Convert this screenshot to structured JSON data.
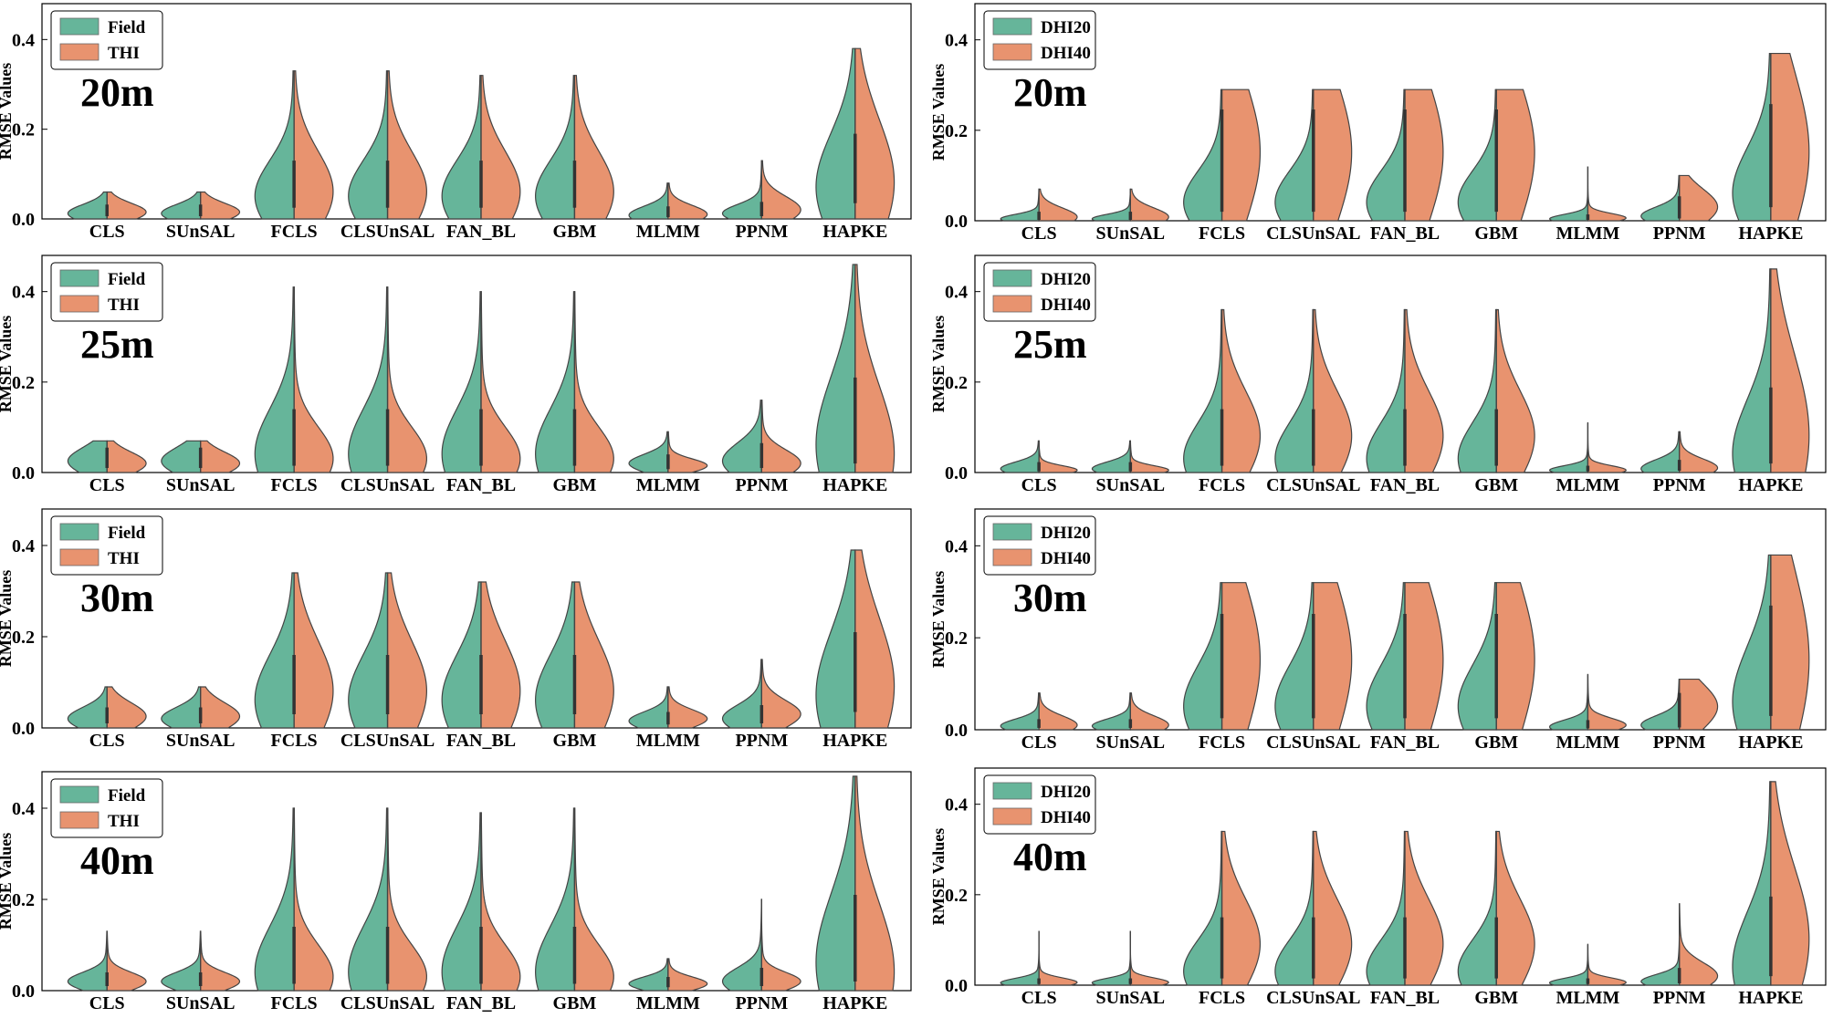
{
  "figure": {
    "ylabel": "RMSE Values",
    "colors": {
      "left": "#66b59a",
      "right": "#e8936f"
    }
  },
  "chart_data": [
    {
      "type": "violin",
      "panel": "left-20m",
      "resolution": "20m",
      "legend": [
        "Field",
        "THI"
      ],
      "ylabel": "RMSE Values",
      "yticks": [
        "0.0",
        "0.2",
        "0.4"
      ],
      "ylim": [
        0,
        0.48
      ],
      "categories": [
        "CLS",
        "SUnSAL",
        "FCLS",
        "CLSUnSAL",
        "FAN_BL",
        "GBM",
        "MLMM",
        "PPNM",
        "HAPKE"
      ],
      "series": [
        {
          "name": "Field",
          "max": [
            0.06,
            0.06,
            0.33,
            0.33,
            0.32,
            0.32,
            0.08,
            0.13,
            0.38
          ],
          "center": [
            0.012,
            0.012,
            0.05,
            0.05,
            0.05,
            0.05,
            0.008,
            0.012,
            0.07
          ],
          "spread": [
            0.02,
            0.02,
            0.08,
            0.08,
            0.08,
            0.08,
            0.02,
            0.02,
            0.12
          ]
        },
        {
          "name": "THI",
          "max": [
            0.06,
            0.06,
            0.33,
            0.33,
            0.32,
            0.32,
            0.08,
            0.13,
            0.38
          ],
          "center": [
            0.015,
            0.015,
            0.06,
            0.06,
            0.06,
            0.06,
            0.01,
            0.02,
            0.08
          ],
          "spread": [
            0.02,
            0.02,
            0.09,
            0.09,
            0.09,
            0.09,
            0.02,
            0.03,
            0.14
          ]
        }
      ]
    },
    {
      "type": "violin",
      "panel": "right-20m",
      "resolution": "20m",
      "legend": [
        "DHI20",
        "DHI40"
      ],
      "ylabel": "RMSE Values",
      "yticks": [
        "0.0",
        "0.2",
        "0.4"
      ],
      "ylim": [
        0,
        0.48
      ],
      "categories": [
        "CLS",
        "SUnSAL",
        "FCLS",
        "CLSUnSAL",
        "FAN_BL",
        "GBM",
        "MLMM",
        "PPNM",
        "HAPKE"
      ],
      "series": [
        {
          "name": "DHI20",
          "max": [
            0.07,
            0.07,
            0.29,
            0.29,
            0.29,
            0.29,
            0.12,
            0.1,
            0.37
          ],
          "center": [
            0.004,
            0.004,
            0.04,
            0.04,
            0.04,
            0.04,
            0.004,
            0.01,
            0.06
          ],
          "spread": [
            0.01,
            0.01,
            0.07,
            0.07,
            0.07,
            0.07,
            0.01,
            0.02,
            0.1
          ]
        },
        {
          "name": "DHI40",
          "max": [
            0.07,
            0.07,
            0.29,
            0.29,
            0.29,
            0.29,
            0.12,
            0.1,
            0.37
          ],
          "center": [
            0.008,
            0.008,
            0.15,
            0.15,
            0.15,
            0.15,
            0.006,
            0.03,
            0.15
          ],
          "spread": [
            0.02,
            0.02,
            0.16,
            0.16,
            0.16,
            0.16,
            0.01,
            0.04,
            0.18
          ]
        }
      ]
    },
    {
      "type": "violin",
      "panel": "left-25m",
      "resolution": "25m",
      "legend": [
        "Field",
        "THI"
      ],
      "ylabel": "RMSE Values",
      "yticks": [
        "0.0",
        "0.2",
        "0.4"
      ],
      "ylim": [
        0,
        0.48
      ],
      "categories": [
        "CLS",
        "SUnSAL",
        "FCLS",
        "CLSUnSAL",
        "FAN_BL",
        "GBM",
        "MLMM",
        "PPNM",
        "HAPKE"
      ],
      "series": [
        {
          "name": "Field",
          "max": [
            0.07,
            0.07,
            0.41,
            0.41,
            0.4,
            0.4,
            0.09,
            0.16,
            0.46
          ],
          "center": [
            0.025,
            0.025,
            0.04,
            0.04,
            0.04,
            0.04,
            0.02,
            0.025,
            0.06
          ],
          "spread": [
            0.03,
            0.03,
            0.1,
            0.1,
            0.1,
            0.1,
            0.02,
            0.04,
            0.15
          ]
        },
        {
          "name": "THI",
          "max": [
            0.07,
            0.07,
            0.41,
            0.41,
            0.4,
            0.4,
            0.09,
            0.16,
            0.46
          ],
          "center": [
            0.02,
            0.02,
            0.03,
            0.03,
            0.03,
            0.03,
            0.015,
            0.02,
            0.04
          ],
          "spread": [
            0.025,
            0.025,
            0.07,
            0.07,
            0.07,
            0.07,
            0.015,
            0.03,
            0.15
          ]
        }
      ]
    },
    {
      "type": "violin",
      "panel": "right-25m",
      "resolution": "25m",
      "legend": [
        "DHI20",
        "DHI40"
      ],
      "ylabel": "RMSE Values",
      "yticks": [
        "0.0",
        "0.2",
        "0.4"
      ],
      "ylim": [
        0,
        0.48
      ],
      "categories": [
        "CLS",
        "SUnSAL",
        "FCLS",
        "CLSUnSAL",
        "FAN_BL",
        "GBM",
        "MLMM",
        "PPNM",
        "HAPKE"
      ],
      "series": [
        {
          "name": "DHI20",
          "max": [
            0.07,
            0.07,
            0.36,
            0.36,
            0.36,
            0.36,
            0.11,
            0.09,
            0.45
          ],
          "center": [
            0.008,
            0.008,
            0.03,
            0.03,
            0.03,
            0.03,
            0.005,
            0.008,
            0.04
          ],
          "spread": [
            0.015,
            0.015,
            0.08,
            0.08,
            0.08,
            0.08,
            0.01,
            0.02,
            0.12
          ]
        },
        {
          "name": "DHI40",
          "max": [
            0.07,
            0.07,
            0.36,
            0.36,
            0.36,
            0.36,
            0.11,
            0.09,
            0.45
          ],
          "center": [
            0.005,
            0.005,
            0.08,
            0.08,
            0.08,
            0.08,
            0.005,
            0.01,
            0.08
          ],
          "spread": [
            0.01,
            0.01,
            0.1,
            0.1,
            0.1,
            0.1,
            0.01,
            0.02,
            0.18
          ]
        }
      ]
    },
    {
      "type": "violin",
      "panel": "left-30m",
      "resolution": "30m",
      "legend": [
        "Field",
        "THI"
      ],
      "ylabel": "RMSE Values",
      "yticks": [
        "0.0",
        "0.2",
        "0.4"
      ],
      "ylim": [
        0,
        0.48
      ],
      "categories": [
        "CLS",
        "SUnSAL",
        "FCLS",
        "CLSUnSAL",
        "FAN_BL",
        "GBM",
        "MLMM",
        "PPNM",
        "HAPKE"
      ],
      "series": [
        {
          "name": "Field",
          "max": [
            0.09,
            0.09,
            0.34,
            0.34,
            0.32,
            0.32,
            0.09,
            0.15,
            0.39
          ],
          "center": [
            0.02,
            0.02,
            0.06,
            0.06,
            0.06,
            0.06,
            0.015,
            0.02,
            0.07
          ],
          "spread": [
            0.025,
            0.025,
            0.1,
            0.1,
            0.1,
            0.1,
            0.02,
            0.03,
            0.14
          ]
        },
        {
          "name": "THI",
          "max": [
            0.09,
            0.09,
            0.34,
            0.34,
            0.32,
            0.32,
            0.09,
            0.15,
            0.39
          ],
          "center": [
            0.025,
            0.025,
            0.08,
            0.08,
            0.08,
            0.08,
            0.02,
            0.03,
            0.09
          ],
          "spread": [
            0.03,
            0.03,
            0.11,
            0.11,
            0.11,
            0.11,
            0.02,
            0.03,
            0.15
          ]
        }
      ]
    },
    {
      "type": "violin",
      "panel": "right-30m",
      "resolution": "30m",
      "legend": [
        "DHI20",
        "DHI40"
      ],
      "ylabel": "RMSE Values",
      "yticks": [
        "0.0",
        "0.2",
        "0.4"
      ],
      "ylim": [
        0,
        0.48
      ],
      "categories": [
        "CLS",
        "SUnSAL",
        "FCLS",
        "CLSUnSAL",
        "FAN_BL",
        "GBM",
        "MLMM",
        "PPNM",
        "HAPKE"
      ],
      "series": [
        {
          "name": "DHI20",
          "max": [
            0.08,
            0.08,
            0.32,
            0.32,
            0.32,
            0.32,
            0.12,
            0.11,
            0.38
          ],
          "center": [
            0.008,
            0.008,
            0.05,
            0.05,
            0.05,
            0.05,
            0.006,
            0.01,
            0.06
          ],
          "spread": [
            0.015,
            0.015,
            0.09,
            0.09,
            0.09,
            0.09,
            0.015,
            0.02,
            0.12
          ]
        },
        {
          "name": "DHI40",
          "max": [
            0.08,
            0.08,
            0.32,
            0.32,
            0.32,
            0.32,
            0.12,
            0.11,
            0.38
          ],
          "center": [
            0.01,
            0.01,
            0.15,
            0.15,
            0.15,
            0.15,
            0.01,
            0.05,
            0.15
          ],
          "spread": [
            0.02,
            0.02,
            0.17,
            0.17,
            0.17,
            0.17,
            0.015,
            0.05,
            0.2
          ]
        }
      ]
    },
    {
      "type": "violin",
      "panel": "left-40m",
      "resolution": "40m",
      "legend": [
        "Field",
        "THI"
      ],
      "ylabel": "RMSE Values",
      "yticks": [
        "0.0",
        "0.2",
        "0.4"
      ],
      "ylim": [
        0,
        0.48
      ],
      "categories": [
        "CLS",
        "SUnSAL",
        "FCLS",
        "CLSUnSAL",
        "FAN_BL",
        "GBM",
        "MLMM",
        "PPNM",
        "HAPKE"
      ],
      "series": [
        {
          "name": "Field",
          "max": [
            0.13,
            0.13,
            0.4,
            0.4,
            0.39,
            0.4,
            0.07,
            0.2,
            0.47
          ],
          "center": [
            0.02,
            0.02,
            0.04,
            0.04,
            0.04,
            0.04,
            0.015,
            0.02,
            0.06
          ],
          "spread": [
            0.02,
            0.02,
            0.1,
            0.1,
            0.1,
            0.1,
            0.015,
            0.03,
            0.15
          ]
        },
        {
          "name": "THI",
          "max": [
            0.13,
            0.13,
            0.4,
            0.4,
            0.39,
            0.4,
            0.07,
            0.2,
            0.47
          ],
          "center": [
            0.02,
            0.02,
            0.03,
            0.03,
            0.03,
            0.03,
            0.015,
            0.02,
            0.04
          ],
          "spread": [
            0.02,
            0.02,
            0.07,
            0.07,
            0.07,
            0.07,
            0.015,
            0.02,
            0.15
          ]
        }
      ]
    },
    {
      "type": "violin",
      "panel": "right-40m",
      "resolution": "40m",
      "legend": [
        "DHI20",
        "DHI40"
      ],
      "ylabel": "RMSE Values",
      "yticks": [
        "0.0",
        "0.2",
        "0.4"
      ],
      "ylim": [
        0,
        0.48
      ],
      "categories": [
        "CLS",
        "SUnSAL",
        "FCLS",
        "CLSUnSAL",
        "FAN_BL",
        "GBM",
        "MLMM",
        "PPNM",
        "HAPKE"
      ],
      "series": [
        {
          "name": "DHI20",
          "max": [
            0.12,
            0.12,
            0.34,
            0.34,
            0.34,
            0.34,
            0.09,
            0.18,
            0.45
          ],
          "center": [
            0.005,
            0.005,
            0.03,
            0.03,
            0.03,
            0.03,
            0.005,
            0.008,
            0.04
          ],
          "spread": [
            0.01,
            0.01,
            0.07,
            0.07,
            0.07,
            0.07,
            0.01,
            0.015,
            0.12
          ]
        },
        {
          "name": "DHI40",
          "max": [
            0.12,
            0.12,
            0.34,
            0.34,
            0.34,
            0.34,
            0.09,
            0.18,
            0.45
          ],
          "center": [
            0.006,
            0.006,
            0.09,
            0.09,
            0.09,
            0.09,
            0.006,
            0.02,
            0.1
          ],
          "spread": [
            0.01,
            0.01,
            0.1,
            0.1,
            0.1,
            0.1,
            0.01,
            0.03,
            0.16
          ]
        }
      ]
    }
  ]
}
